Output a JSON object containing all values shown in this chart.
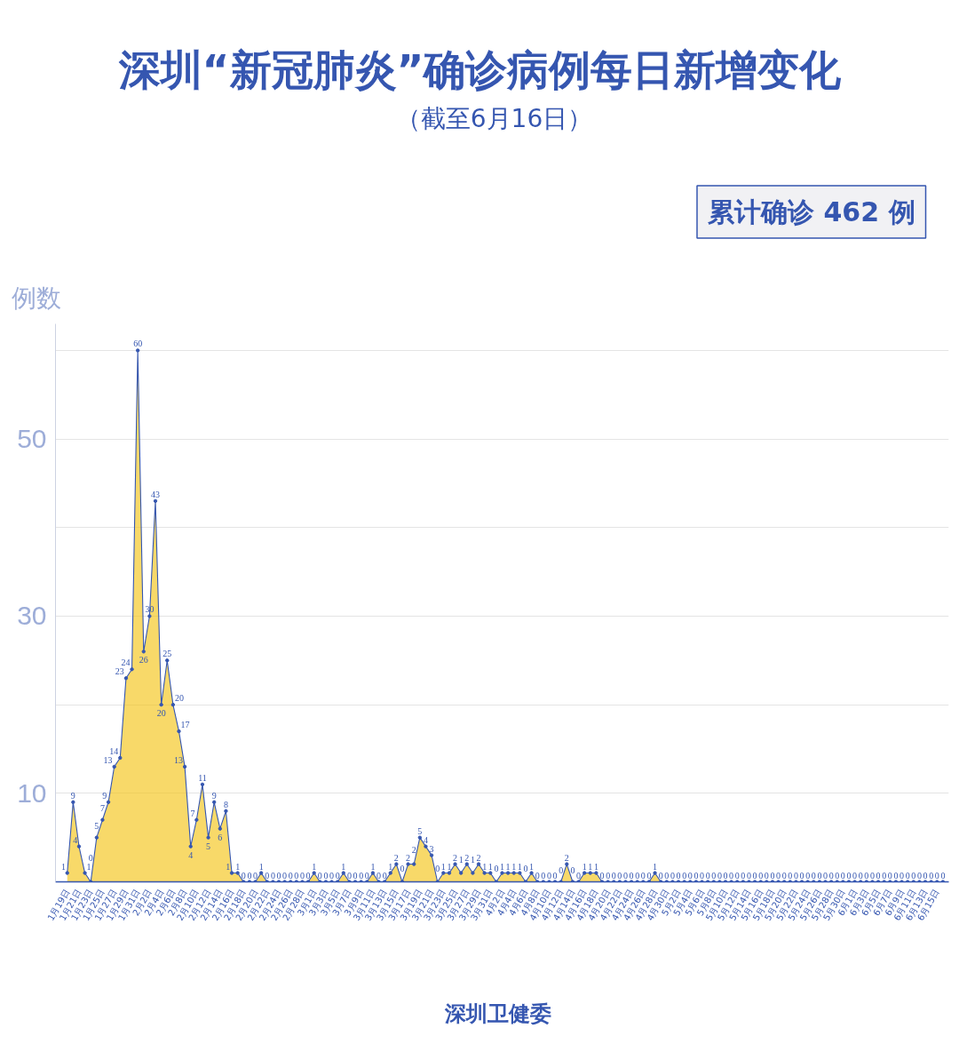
{
  "chart_data": {
    "type": "area",
    "title": "深圳“新冠肺炎”确诊病例每日新增变化",
    "subtitle": "（截至6月16日）",
    "ylabel": "例数",
    "annotations": [
      "累计确诊 462 例",
      "深圳卫健委"
    ],
    "categories": [
      "1月19日",
      null,
      "1月21日",
      null,
      "1月23日",
      null,
      "1月25日",
      null,
      "1月27日",
      null,
      "1月29日",
      null,
      "1月31日",
      null,
      "2月2日",
      null,
      "2月4日",
      null,
      "2月6日",
      null,
      "2月8日",
      null,
      "2月10日",
      null,
      "2月12日",
      null,
      "2月14日",
      null,
      "2月16日",
      null,
      "2月18日",
      null,
      "2月20日",
      null,
      "2月22日",
      null,
      "2月24日",
      null,
      "2月26日",
      null,
      "2月28日",
      null,
      "3月1日",
      null,
      "3月3日",
      null,
      "3月5日",
      null,
      "3月7日",
      null,
      "3月9日",
      null,
      "3月11日",
      null,
      "3月13日",
      null,
      "3月15日",
      null,
      "3月17日",
      null,
      "3月19日",
      null,
      "3月21日",
      null,
      "3月23日",
      null,
      "3月25日",
      null,
      "3月27日",
      null,
      "3月29日",
      null,
      "3月31日",
      null,
      "4月2日",
      null,
      "4月4日",
      null,
      "4月6日",
      null,
      "4月8日",
      null,
      "4月10日",
      null,
      "4月12日",
      null,
      "4月14日",
      null,
      "4月16日",
      null,
      "4月18日",
      null,
      "4月20日",
      null,
      "4月22日",
      null,
      "4月24日",
      null,
      "4月26日",
      null,
      "4月28日",
      null,
      "4月30日",
      null,
      "5月2日",
      null,
      "5月4日",
      null,
      "5月6日",
      null,
      "5月8日",
      null,
      "5月10日",
      null,
      "5月12日",
      null,
      "5月14日",
      null,
      "5月16日",
      null,
      "5月18日",
      null,
      "5月20日",
      null,
      "5月22日",
      null,
      "5月24日",
      null,
      "5月26日",
      null,
      "5月28日",
      null,
      "5月30日",
      null,
      "6月1日",
      null,
      "6月3日",
      null,
      "6月5日",
      null,
      "6月7日",
      null,
      "6月9日",
      null,
      "6月11日",
      null,
      "6月13日",
      null,
      "6月15日",
      null
    ],
    "series": [
      {
        "color": "#f4c20d",
        "values": [
          1,
          9,
          4,
          1,
          0,
          5,
          7,
          9,
          13,
          14,
          23,
          24,
          60,
          26,
          30,
          43,
          20,
          25,
          20,
          17,
          13,
          4,
          7,
          11,
          5,
          9,
          6,
          8,
          1,
          1,
          0,
          0,
          0,
          1,
          0,
          0,
          0,
          0,
          0,
          0,
          0,
          0,
          1,
          0,
          0,
          0,
          0,
          1,
          0,
          0,
          0,
          0,
          1,
          0,
          0,
          1,
          2,
          0,
          2,
          2,
          5,
          4,
          3,
          0,
          1,
          1,
          2,
          1,
          2,
          1,
          2,
          1,
          1,
          0,
          1,
          1,
          1,
          1,
          0,
          1,
          0,
          0,
          0,
          0,
          0,
          2,
          0,
          0,
          1,
          1,
          1,
          0,
          0,
          0,
          0,
          0,
          0,
          0,
          0,
          0,
          1,
          0,
          0,
          0,
          0,
          0,
          0,
          0,
          0,
          0,
          0,
          0,
          0,
          0,
          0,
          0,
          0,
          0,
          0,
          0,
          0,
          0,
          0,
          0,
          0,
          0,
          0,
          0,
          0,
          0,
          0,
          0,
          0,
          0,
          0,
          0,
          0,
          0,
          0,
          0,
          0,
          0,
          0,
          0,
          0,
          0,
          0,
          0,
          0,
          0
        ]
      }
    ],
    "ylim": [
      0,
      63
    ],
    "yticks": [
      {
        "value": 0,
        "label": null
      },
      10,
      {
        "value": 20,
        "label": null
      },
      30,
      {
        "value": 40,
        "label": null
      },
      50,
      {
        "value": 60,
        "label": null
      }
    ],
    "grid": "y",
    "marker": "circle",
    "data_labels": true
  }
}
